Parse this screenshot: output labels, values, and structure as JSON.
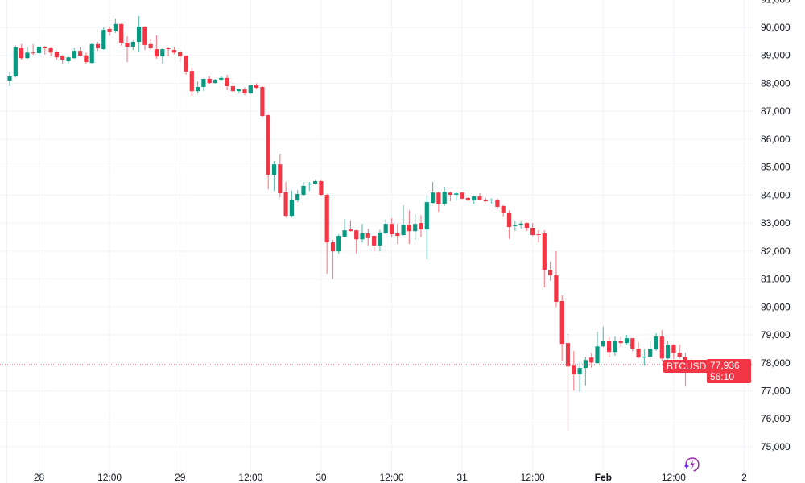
{
  "chart_data": {
    "type": "candlestick",
    "symbol": "BTCUSD",
    "last_price": "77,936",
    "countdown": "56:10",
    "ylim": [
      74500,
      91000
    ],
    "y_ticks": [
      "75,000",
      "76,000",
      "77,000",
      "78,000",
      "79,000",
      "80,000",
      "81,000",
      "82,000",
      "83,000",
      "84,000",
      "85,000",
      "86,000",
      "87,000",
      "88,000",
      "89,000",
      "90,000",
      "91,000"
    ],
    "x_ticks": [
      {
        "label": "28",
        "t": "01-28 00:00",
        "bold": false
      },
      {
        "label": "12:00",
        "t": "01-28 12:00",
        "bold": false
      },
      {
        "label": "29",
        "t": "01-29 00:00",
        "bold": false
      },
      {
        "label": "12:00",
        "t": "01-29 12:00",
        "bold": false
      },
      {
        "label": "30",
        "t": "01-30 00:00",
        "bold": false
      },
      {
        "label": "12:00",
        "t": "01-30 12:00",
        "bold": false
      },
      {
        "label": "31",
        "t": "01-31 00:00",
        "bold": false
      },
      {
        "label": "12:00",
        "t": "01-31 12:00",
        "bold": false
      },
      {
        "label": "Feb",
        "t": "02-01 00:00",
        "bold": true
      },
      {
        "label": "12:00",
        "t": "02-01 12:00",
        "bold": false
      },
      {
        "label": "2",
        "t": "02-02 00:00",
        "bold": false
      }
    ],
    "grid": true,
    "colors": {
      "up": "#089981",
      "down": "#F23645",
      "grid": "#F0F3FA",
      "text": "#131722",
      "accent": "#9C27B0"
    },
    "columns": [
      "time",
      "open",
      "high",
      "low",
      "close"
    ],
    "candles": [
      [
        "01-27 19:00",
        88100,
        88400,
        87900,
        88250
      ],
      [
        "01-27 20:00",
        88250,
        89340,
        88200,
        89280
      ],
      [
        "01-27 21:00",
        89250,
        89400,
        88850,
        88900
      ],
      [
        "01-27 22:00",
        88900,
        89300,
        88880,
        89100
      ],
      [
        "01-27 23:00",
        89100,
        89400,
        89020,
        89080
      ],
      [
        "01-28 00:00",
        89080,
        89340,
        89020,
        89310
      ],
      [
        "01-28 01:00",
        89300,
        89330,
        89030,
        89250
      ],
      [
        "01-28 02:00",
        89250,
        89290,
        88960,
        89100
      ],
      [
        "01-28 03:00",
        89130,
        89150,
        88850,
        88930
      ],
      [
        "01-28 04:00",
        88990,
        89010,
        88700,
        88850
      ],
      [
        "01-28 05:00",
        88790,
        88960,
        88720,
        88930
      ],
      [
        "01-28 06:00",
        88900,
        89250,
        88880,
        89160
      ],
      [
        "01-28 07:00",
        89160,
        89300,
        88960,
        88990
      ],
      [
        "01-28 08:00",
        89000,
        89100,
        88700,
        88760
      ],
      [
        "01-28 09:00",
        88730,
        89420,
        88700,
        89400
      ],
      [
        "01-28 10:00",
        89400,
        89480,
        89160,
        89250
      ],
      [
        "01-28 11:00",
        89220,
        90000,
        89200,
        89910
      ],
      [
        "01-28 12:00",
        89940,
        90030,
        89700,
        89830
      ],
      [
        "01-28 13:00",
        89860,
        90320,
        89800,
        90120
      ],
      [
        "01-28 14:00",
        90120,
        90140,
        89340,
        89450
      ],
      [
        "01-28 15:00",
        89450,
        89680,
        88760,
        89310
      ],
      [
        "01-28 16:00",
        89310,
        89540,
        89190,
        89480
      ],
      [
        "01-28 17:00",
        89480,
        90400,
        89140,
        90030
      ],
      [
        "01-28 18:00",
        90030,
        90050,
        89190,
        89370
      ],
      [
        "01-28 19:00",
        89400,
        89570,
        89200,
        89250
      ],
      [
        "01-28 20:00",
        89220,
        89710,
        88880,
        88960
      ],
      [
        "01-28 21:00",
        88960,
        89250,
        88700,
        89220
      ],
      [
        "01-28 22:00",
        89250,
        89310,
        88960,
        89220
      ],
      [
        "01-28 23:00",
        89190,
        89310,
        89040,
        89100
      ],
      [
        "01-29 00:00",
        89130,
        89190,
        88760,
        88960
      ],
      [
        "01-29 01:00",
        88990,
        89000,
        88300,
        88420
      ],
      [
        "01-29 02:00",
        88440,
        88550,
        87550,
        87720
      ],
      [
        "01-29 03:00",
        87720,
        88070,
        87630,
        87870
      ],
      [
        "01-29 04:00",
        87870,
        88160,
        87720,
        88160
      ],
      [
        "01-29 05:00",
        88160,
        88250,
        87980,
        88010
      ],
      [
        "01-29 06:00",
        88010,
        88160,
        87990,
        88130
      ],
      [
        "01-29 07:00",
        88130,
        88250,
        88100,
        88190
      ],
      [
        "01-29 08:00",
        88190,
        88300,
        87750,
        87900
      ],
      [
        "01-29 09:00",
        87900,
        88000,
        87700,
        87720
      ],
      [
        "01-29 10:00",
        87720,
        87800,
        87680,
        87780
      ],
      [
        "01-29 11:00",
        87780,
        87860,
        87580,
        87640
      ],
      [
        "01-29 12:00",
        87640,
        87930,
        87620,
        87930
      ],
      [
        "01-29 13:00",
        87930,
        88000,
        87780,
        87840
      ],
      [
        "01-29 14:00",
        87870,
        87900,
        86800,
        86830
      ],
      [
        "01-29 15:00",
        86860,
        86880,
        84210,
        84730
      ],
      [
        "01-29 16:00",
        84730,
        85220,
        84150,
        85100
      ],
      [
        "01-29 17:00",
        85100,
        85480,
        83920,
        84070
      ],
      [
        "01-29 18:00",
        84100,
        84470,
        83200,
        83260
      ],
      [
        "01-29 19:00",
        83260,
        84150,
        83200,
        83840
      ],
      [
        "01-29 20:00",
        83810,
        84180,
        83750,
        84040
      ],
      [
        "01-29 21:00",
        84010,
        84470,
        83980,
        84330
      ],
      [
        "01-29 22:00",
        84390,
        84470,
        84150,
        84410
      ],
      [
        "01-29 23:00",
        84410,
        84560,
        84380,
        84500
      ],
      [
        "01-30 00:00",
        84500,
        84540,
        83980,
        84010
      ],
      [
        "01-30 01:00",
        84010,
        84050,
        81190,
        82310
      ],
      [
        "01-30 02:00",
        82310,
        82400,
        81010,
        81990
      ],
      [
        "01-30 03:00",
        81990,
        82600,
        81900,
        82540
      ],
      [
        "01-30 04:00",
        82510,
        83140,
        82480,
        82740
      ],
      [
        "01-30 05:00",
        82770,
        83100,
        82700,
        82710
      ],
      [
        "01-30 06:00",
        82740,
        82760,
        81910,
        82420
      ],
      [
        "01-30 07:00",
        82420,
        82970,
        82300,
        82630
      ],
      [
        "01-30 08:00",
        82630,
        82800,
        82200,
        82460
      ],
      [
        "01-30 09:00",
        82540,
        82560,
        81990,
        82200
      ],
      [
        "01-30 10:00",
        82200,
        82760,
        81990,
        82660
      ],
      [
        "01-30 11:00",
        82630,
        83140,
        82600,
        82970
      ],
      [
        "01-30 12:00",
        82970,
        83170,
        82500,
        82600
      ],
      [
        "01-30 13:00",
        82630,
        82970,
        82250,
        82540
      ],
      [
        "01-30 14:00",
        82570,
        83630,
        82540,
        82940
      ],
      [
        "01-30 15:00",
        82940,
        83450,
        82250,
        82710
      ],
      [
        "01-30 16:00",
        82710,
        83310,
        82400,
        82970
      ],
      [
        "01-30 17:00",
        83000,
        83280,
        82500,
        82770
      ],
      [
        "01-30 18:00",
        82770,
        83980,
        81710,
        83750
      ],
      [
        "01-30 19:00",
        83720,
        84470,
        83690,
        84090
      ],
      [
        "01-30 20:00",
        84090,
        84120,
        83400,
        83690
      ],
      [
        "01-30 21:00",
        83690,
        84300,
        83620,
        84120
      ],
      [
        "01-30 22:00",
        84090,
        84120,
        83780,
        84010
      ],
      [
        "01-30 23:00",
        84010,
        84120,
        83810,
        84060
      ],
      [
        "01-31 00:00",
        84090,
        84110,
        83850,
        83870
      ],
      [
        "01-31 01:00",
        83900,
        83920,
        83790,
        83810
      ],
      [
        "01-31 02:00",
        83810,
        83980,
        83680,
        83950
      ],
      [
        "01-31 03:00",
        83950,
        84070,
        83820,
        83840
      ],
      [
        "01-31 04:00",
        83840,
        83900,
        83760,
        83780
      ],
      [
        "01-31 05:00",
        83810,
        83880,
        83700,
        83840
      ],
      [
        "01-31 06:00",
        83840,
        83870,
        83500,
        83580
      ],
      [
        "01-31 07:00",
        83610,
        83640,
        83240,
        83380
      ],
      [
        "01-31 08:00",
        83380,
        83460,
        82430,
        82860
      ],
      [
        "01-31 09:00",
        82900,
        83080,
        82720,
        82920
      ],
      [
        "01-31 10:00",
        82920,
        83050,
        82810,
        82980
      ],
      [
        "01-31 11:00",
        83000,
        83020,
        82720,
        82830
      ],
      [
        "01-31 12:00",
        82830,
        83000,
        82530,
        82570
      ],
      [
        "01-31 13:00",
        82600,
        82750,
        82300,
        82590
      ],
      [
        "01-31 14:00",
        82630,
        82750,
        80700,
        81330
      ],
      [
        "01-31 15:00",
        81330,
        81610,
        80930,
        81130
      ],
      [
        "01-31 16:00",
        81130,
        82000,
        80000,
        80180
      ],
      [
        "01-31 17:00",
        80210,
        80420,
        78080,
        78680
      ],
      [
        "01-31 18:00",
        78710,
        79030,
        75540,
        77870
      ],
      [
        "01-31 19:00",
        77900,
        78420,
        77010,
        77590
      ],
      [
        "01-31 20:00",
        77590,
        78000,
        76960,
        77820
      ],
      [
        "01-31 21:00",
        77820,
        78210,
        77190,
        78100
      ],
      [
        "01-31 22:00",
        78190,
        78360,
        77830,
        78010
      ],
      [
        "01-31 23:00",
        77990,
        79110,
        77960,
        78590
      ],
      [
        "02-01 00:00",
        78590,
        79290,
        78560,
        78770
      ],
      [
        "02-01 01:00",
        78770,
        78910,
        78190,
        78390
      ],
      [
        "02-01 02:00",
        78390,
        78940,
        78250,
        78770
      ],
      [
        "02-01 03:00",
        78770,
        78940,
        78570,
        78710
      ],
      [
        "02-01 04:00",
        78710,
        79000,
        78650,
        78880
      ],
      [
        "02-01 05:00",
        78880,
        78900,
        78420,
        78510
      ],
      [
        "02-01 06:00",
        78510,
        78730,
        78150,
        78190
      ],
      [
        "02-01 07:00",
        78190,
        78480,
        77890,
        78220
      ],
      [
        "02-01 08:00",
        78220,
        78770,
        78150,
        78510
      ],
      [
        "02-01 09:00",
        78480,
        79060,
        78430,
        78940
      ],
      [
        "02-01 10:00",
        78940,
        79170,
        78050,
        78160
      ],
      [
        "02-01 11:00",
        78160,
        78770,
        78120,
        78650
      ],
      [
        "02-01 12:00",
        78650,
        78680,
        78130,
        78360
      ],
      [
        "02-01 13:00",
        78360,
        78650,
        78150,
        78220
      ],
      [
        "02-01 14:00",
        78220,
        78360,
        77150,
        78080
      ],
      [
        "02-01 15:00",
        78080,
        78130,
        77880,
        77936
      ]
    ]
  },
  "icons": {
    "bolt": "lightning-bolt-icon"
  }
}
